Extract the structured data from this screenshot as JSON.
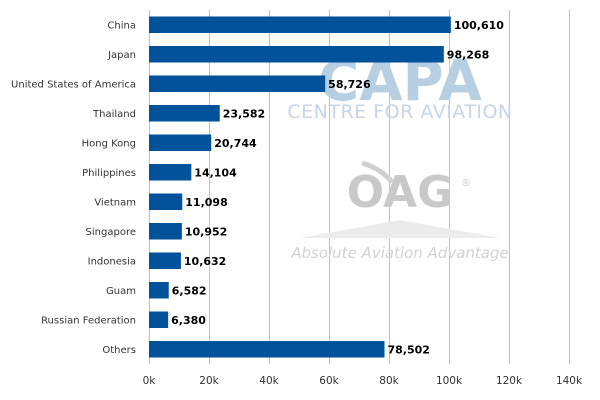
{
  "chart_data": {
    "type": "bar",
    "orientation": "horizontal",
    "categories": [
      "China",
      "Japan",
      "United States of America",
      "Thailand",
      "Hong Kong",
      "Philippines",
      "Vietnam",
      "Singapore",
      "Indonesia",
      "Guam",
      "Russian Federation",
      "Others"
    ],
    "values": [
      100610,
      98268,
      58726,
      23582,
      20744,
      14104,
      11098,
      10952,
      10632,
      6582,
      6380,
      78502
    ],
    "value_labels": [
      "100,610",
      "98,268",
      "58,726",
      "23,582",
      "20,744",
      "14,104",
      "11,098",
      "10,952",
      "10,632",
      "6,582",
      "6,380",
      "78,502"
    ],
    "x_ticks": [
      0,
      20000,
      40000,
      60000,
      80000,
      100000,
      120000,
      140000
    ],
    "x_tick_labels": [
      "0k",
      "20k",
      "40k",
      "60k",
      "80k",
      "100k",
      "120k",
      "140k"
    ],
    "xlim": [
      0,
      140000
    ],
    "grid": "vertical",
    "bar_color": "#00529b",
    "title": "",
    "xlabel": "",
    "ylabel": ""
  },
  "watermarks": {
    "capa_logo": "CAPA",
    "capa_subtitle": "CENTRE FOR AVIATION",
    "oag_logo": "OAG",
    "oag_registered": "®",
    "oag_tagline": "Absolute Aviation Advantage"
  }
}
